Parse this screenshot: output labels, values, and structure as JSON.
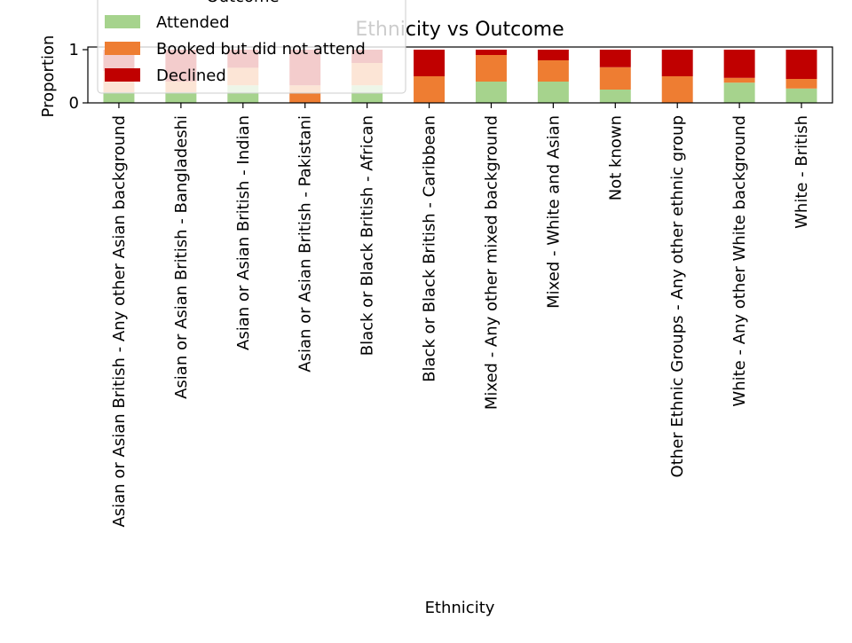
{
  "chart_data": {
    "type": "bar",
    "stacked": true,
    "title": "Ethnicity vs Outcome",
    "xlabel": "Ethnicity",
    "ylabel": "Proportion",
    "ylim": [
      0,
      1.05
    ],
    "yticks": [
      0,
      1
    ],
    "grid": false,
    "legend": {
      "title": "Outcome",
      "placement": "upper-left"
    },
    "categories": [
      "Asian or Asian British - Any other Asian background",
      "Asian or Asian British - Bangladeshi",
      "Asian or Asian British - Indian",
      "Asian or Asian British - Pakistani",
      "Black or Black British - African",
      "Black or Black British - Caribbean",
      "Mixed - Any other mixed background",
      "Mixed - White and Asian",
      "Not known",
      "Other Ethnic Groups - Any other ethnic group",
      "White - Any other White background",
      "White - British"
    ],
    "series": [
      {
        "name": "Attended",
        "color": "#a6d38d",
        "values": [
          0.2,
          0.2,
          0.33,
          0.0,
          0.33,
          0.0,
          0.4,
          0.4,
          0.25,
          0.0,
          0.38,
          0.27
        ]
      },
      {
        "name": "Booked but did not attend",
        "color": "#ee7d32",
        "values": [
          0.4,
          0.2,
          0.33,
          0.33,
          0.42,
          0.5,
          0.5,
          0.4,
          0.42,
          0.5,
          0.09,
          0.18
        ]
      },
      {
        "name": "Declined",
        "color": "#c00000",
        "values": [
          0.4,
          0.6,
          0.34,
          0.67,
          0.25,
          0.5,
          0.1,
          0.2,
          0.33,
          0.5,
          0.53,
          0.55
        ]
      }
    ]
  }
}
